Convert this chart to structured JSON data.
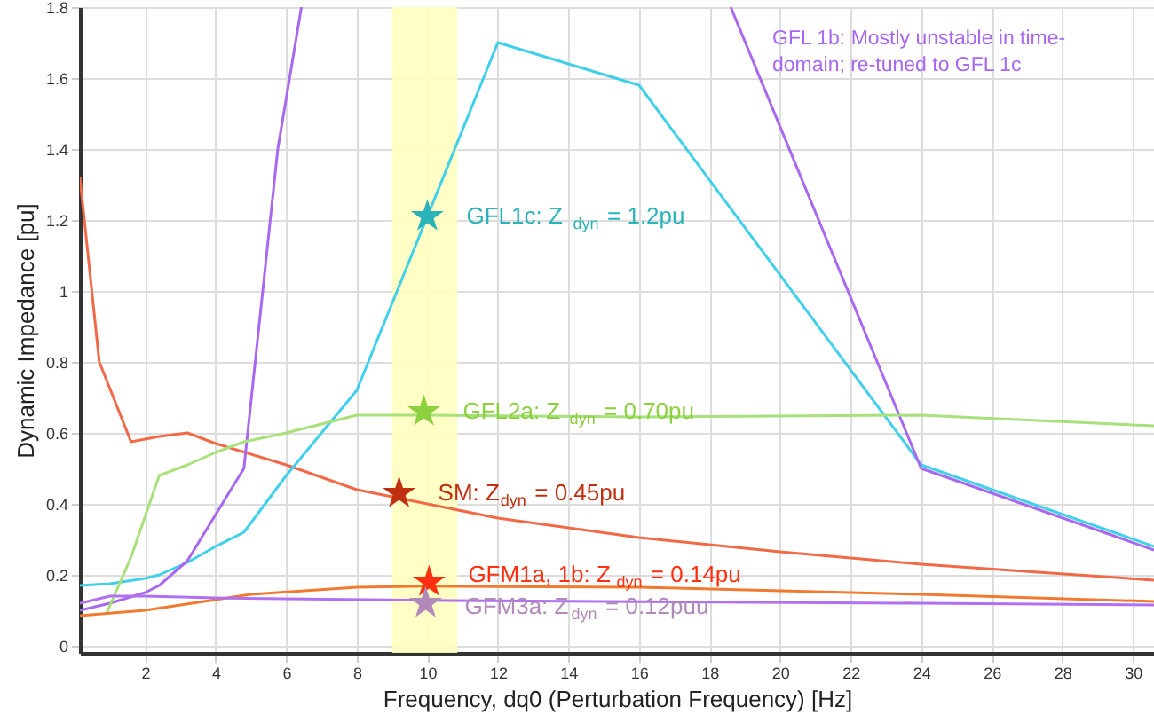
{
  "chart_data": {
    "type": "line",
    "xlabel": "Frequency, dq0 (Perturbation Frequency) [Hz]",
    "ylabel": "Dynamic Impedance [pu]",
    "xlim": [
      0.15,
      30.6
    ],
    "ylim": [
      -0.02,
      1.8
    ],
    "xticks": [
      2,
      4,
      6,
      8,
      10,
      12,
      14,
      16,
      18,
      20,
      22,
      24,
      26,
      28,
      30
    ],
    "yticks": [
      0,
      0.2,
      0.4,
      0.6,
      0.8,
      1,
      1.2,
      1.4,
      1.6,
      1.8
    ],
    "grid": true,
    "legend": false,
    "line_style": "solid",
    "marker": "none",
    "bands": [
      {
        "axis": "x",
        "from": 9,
        "to": 10.85,
        "color": "#ffffc0"
      }
    ],
    "series": [
      {
        "color": "#f06a48",
        "x": [
          0.15,
          0.7,
          1.6,
          2.4,
          3.2,
          4,
          6,
          8,
          10,
          12,
          16,
          20,
          24,
          30.6
        ],
        "values": [
          1.32,
          0.8,
          0.575,
          0.59,
          0.6,
          0.57,
          0.51,
          0.44,
          0.4,
          0.36,
          0.305,
          0.265,
          0.23,
          0.185
        ]
      },
      {
        "color": "#40d0ec",
        "x": [
          0.15,
          1,
          2,
          2.4,
          3.2,
          4,
          4.8,
          6,
          7,
          8,
          12,
          16,
          24,
          30.6
        ],
        "values": [
          0.17,
          0.175,
          0.19,
          0.2,
          0.235,
          0.28,
          0.32,
          0.48,
          0.6,
          0.72,
          1.7,
          1.58,
          0.51,
          0.28
        ]
      },
      {
        "color": "#a868f0",
        "x": [
          0.15,
          1,
          2,
          2.4,
          3.2,
          4,
          4.8,
          5.76,
          6.43,
          12,
          18.6,
          24,
          30.6
        ],
        "values": [
          0.1,
          0.12,
          0.15,
          0.17,
          0.24,
          0.37,
          0.5,
          1.4,
          1.8,
          null,
          1.8,
          0.5,
          0.27
        ]
      },
      {
        "color": "#a8e07c",
        "x": [
          0.9,
          1.6,
          2.4,
          3.2,
          4,
          4.8,
          6,
          8,
          10,
          16,
          24,
          30.6
        ],
        "values": [
          0.09,
          0.25,
          0.48,
          0.51,
          0.545,
          0.575,
          0.6,
          0.65,
          0.65,
          0.645,
          0.65,
          0.62
        ]
      },
      {
        "color": "#f07a30",
        "x": [
          0.15,
          2,
          4,
          5,
          8,
          10,
          16,
          24,
          30.6
        ],
        "values": [
          0.085,
          0.1,
          0.13,
          0.145,
          0.165,
          0.168,
          0.165,
          0.145,
          0.125
        ]
      },
      {
        "color": "#b070f0",
        "x": [
          0.15,
          1,
          2,
          4,
          10,
          24,
          30.6
        ],
        "values": [
          0.12,
          0.14,
          0.14,
          0.135,
          0.128,
          0.12,
          0.115
        ]
      },
      {
        "type": "scatter",
        "marker": "star",
        "x": [
          10,
          9.9,
          9.2,
          10.05,
          9.95
        ],
        "values": [
          1.21,
          0.66,
          0.43,
          0.18,
          0.12
        ],
        "colors": [
          "#2ab3b8",
          "#8cd040",
          "#c03010",
          "#ff3010",
          "#b08ab8"
        ]
      }
    ],
    "annotations": [
      {
        "text": "GFL1c: Z$_{dyn}$ = 1.2pu",
        "x": 10,
        "y": 1.21
      },
      {
        "text": "GFL2a: Z$_{dyn}$ = 0.70pu",
        "x": 9.9,
        "y": 0.66
      },
      {
        "text": "SM: Z$_{dyn}$ = 0.45pu",
        "x": 9.2,
        "y": 0.43
      },
      {
        "text": "GFM1a, 1b: Z$_{dyn}$ = 0.14pu",
        "x": 10.05,
        "y": 0.18
      },
      {
        "text": "GFM3a: Z$_{dyn}$ = 0.12puu",
        "x": 9.95,
        "y": 0.12
      },
      "GFL 1b: Mostly unstable in time-domain; re-tuned to GFL 1c"
    ]
  }
}
